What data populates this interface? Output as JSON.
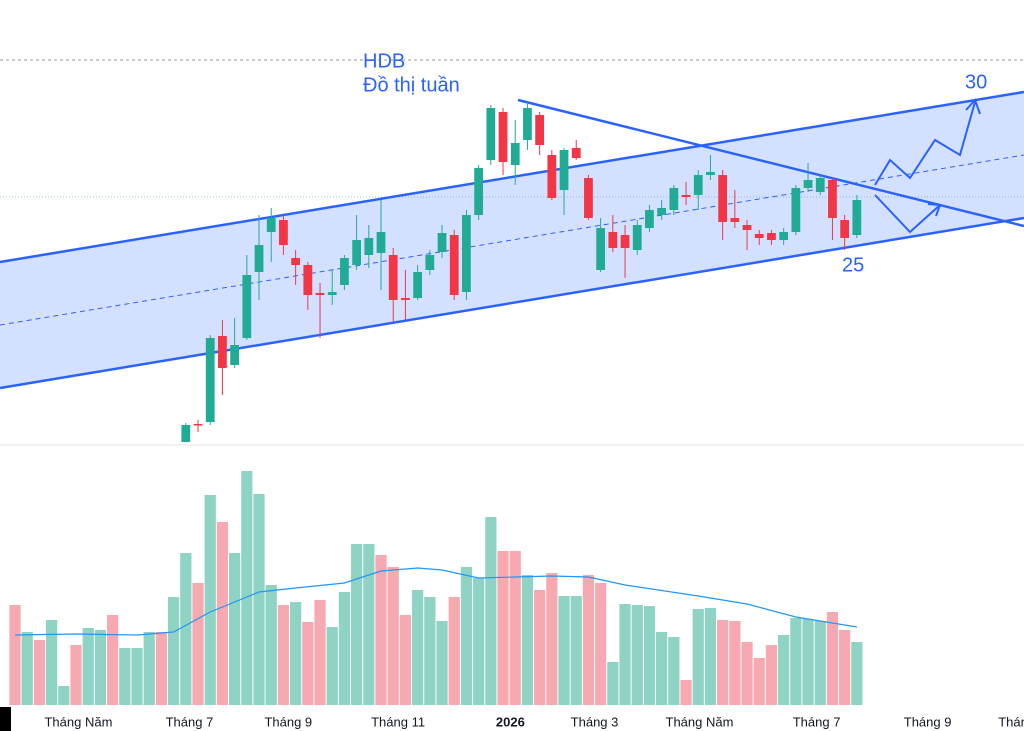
{
  "chart_data": {
    "type": "candlestick",
    "title": "HDB",
    "subtitle": "Đồ thị tuần",
    "annotations": [
      "30",
      "25"
    ],
    "xlim": [
      -1.23,
      82.7
    ],
    "xticks": [
      {
        "value": 5.2,
        "label": "Tháng Năm"
      },
      {
        "value": 14.3,
        "label": "Tháng 7"
      },
      {
        "value": 22.4,
        "label": "Tháng 9"
      },
      {
        "value": 31.4,
        "label": "Tháng 11"
      },
      {
        "value": 40.6,
        "label": "2026"
      },
      {
        "value": 47.5,
        "label": "Tháng 3"
      },
      {
        "value": 56.1,
        "label": "Tháng Năm"
      },
      {
        "value": 65.7,
        "label": "Tháng 7"
      },
      {
        "value": 74.8,
        "label": "Tháng 9"
      },
      {
        "value": 81.8,
        "label": "Thán"
      }
    ],
    "ylim": [
      0,
      45
    ],
    "up_color": "#22ab94",
    "down_color": "#f23645",
    "candles": {
      "x": [
        14,
        15,
        16,
        17,
        18,
        19,
        20,
        21,
        22,
        23,
        24,
        25,
        26,
        27,
        28,
        29,
        30,
        31,
        32,
        33,
        34,
        35,
        36,
        37,
        38,
        39,
        40,
        41,
        42,
        43,
        44,
        45,
        46,
        47,
        48,
        49,
        50,
        51,
        52,
        53,
        54,
        55,
        56,
        57,
        58,
        59,
        60,
        61,
        62,
        63,
        64,
        65,
        66,
        67,
        68,
        69
      ],
      "open": [
        0.8,
        2.6,
        2.8,
        11.4,
        8.5,
        11.2,
        17.8,
        21.8,
        23,
        19.2,
        18.5,
        15.7,
        15.5,
        16.5,
        18.5,
        19.5,
        19.7,
        19.5,
        15.2,
        15.2,
        18,
        19.8,
        21.5,
        15.8,
        23.5,
        29,
        33.8,
        28.5,
        31,
        33.5,
        29.5,
        26,
        30.2,
        27.2,
        18,
        21.8,
        21.5,
        20,
        22.2,
        23.5,
        24,
        25.5,
        25.5,
        27.5,
        27.5,
        23.2,
        22.5,
        21.6,
        21.7,
        21,
        21.8,
        26.2,
        25.8,
        27,
        23,
        21.5
      ],
      "high": [
        2.7,
        3,
        11.5,
        13,
        13.2,
        19.5,
        23.5,
        24.2,
        23.5,
        20,
        18.8,
        16.7,
        18,
        19.5,
        23.5,
        22.5,
        25,
        20.2,
        18,
        18.5,
        20,
        22.5,
        22,
        24,
        28.5,
        34.5,
        34.2,
        33,
        34.8,
        33.8,
        30,
        30.2,
        31,
        27.5,
        23.2,
        23.5,
        22.5,
        23,
        24.5,
        25,
        26.5,
        26.8,
        28,
        29.5,
        28,
        26,
        23,
        22,
        22,
        22.2,
        26.5,
        28.7,
        27.5,
        27.2,
        23.5,
        25.5
      ],
      "low": [
        0.8,
        1.8,
        2.5,
        5.5,
        8.2,
        11,
        15,
        18.8,
        19.5,
        16.5,
        14,
        11.2,
        14.5,
        16,
        18,
        18.2,
        16,
        12.8,
        13,
        15,
        17.5,
        19.2,
        15,
        15,
        23,
        28.5,
        27.5,
        26.5,
        30,
        29.5,
        25,
        23.5,
        29,
        23,
        17.8,
        19.8,
        17.2,
        19.5,
        21.8,
        23,
        23.5,
        24.5,
        24,
        27,
        21,
        22.2,
        20,
        20.5,
        20.5,
        20.5,
        21.5,
        25.8,
        25.5,
        21,
        20,
        21.2
      ],
      "close": [
        2.5,
        2.5,
        11.2,
        8.2,
        10.5,
        17.5,
        20.5,
        23.2,
        20.5,
        18.5,
        15.5,
        15.5,
        15.8,
        19.2,
        21,
        21.2,
        21.8,
        15,
        15,
        17.8,
        19.5,
        21.7,
        15.5,
        23.5,
        28.2,
        34.2,
        28.8,
        30.7,
        34.2,
        30.5,
        25.2,
        30,
        29.2,
        23.2,
        22.2,
        20.2,
        20.2,
        22.5,
        24,
        24.2,
        26.2,
        25.3,
        27.5,
        27.8,
        22.8,
        22.8,
        22,
        21.2,
        21,
        21.8,
        26.2,
        27,
        27.2,
        23.2,
        21.2,
        25
      ]
    },
    "volume": {
      "ylim": [
        0,
        250
      ],
      "up_color": "#8fd3c5",
      "down_color": "#f7a9b1",
      "values": [
        100,
        73,
        65,
        85,
        19,
        60,
        77,
        75,
        90,
        57,
        57,
        73,
        73,
        108,
        152,
        122,
        210,
        183,
        152,
        234,
        211,
        120,
        100,
        103,
        83,
        105,
        78,
        113,
        161,
        161,
        150,
        138,
        90,
        115,
        108,
        84,
        108,
        138,
        127,
        188,
        154,
        154,
        130,
        115,
        132,
        109,
        109,
        130,
        122,
        43,
        101,
        100,
        99,
        73,
        68,
        25,
        96,
        97,
        85,
        84,
        63,
        47,
        60,
        70,
        87,
        86,
        84,
        93,
        75,
        63
      ],
      "up": [
        false,
        true,
        false,
        true,
        true,
        false,
        true,
        true,
        false,
        true,
        true,
        true,
        false,
        true,
        true,
        false,
        true,
        false,
        true,
        true,
        true,
        true,
        false,
        true,
        false,
        false,
        true,
        true,
        true,
        true,
        false,
        false,
        false,
        true,
        true,
        true,
        false,
        true,
        true,
        true,
        false,
        false,
        true,
        false,
        false,
        true,
        true,
        false,
        false,
        true,
        true,
        true,
        true,
        true,
        true,
        false,
        true,
        true,
        false,
        false,
        false,
        false,
        false,
        true,
        true,
        true,
        true,
        false,
        false,
        true
      ],
      "ma": {
        "color": "#2196f3",
        "x": [
          0,
          5,
          10,
          13,
          16,
          20,
          23,
          27,
          30,
          33,
          35,
          38,
          41,
          44,
          47,
          50,
          56,
          60,
          64,
          67,
          69
        ],
        "values": [
          70,
          71,
          70,
          73,
          93,
          113,
          117,
          122,
          134,
          137,
          135,
          127,
          128,
          129,
          128,
          120,
          109,
          101,
          88,
          82,
          78
        ]
      }
    }
  }
}
